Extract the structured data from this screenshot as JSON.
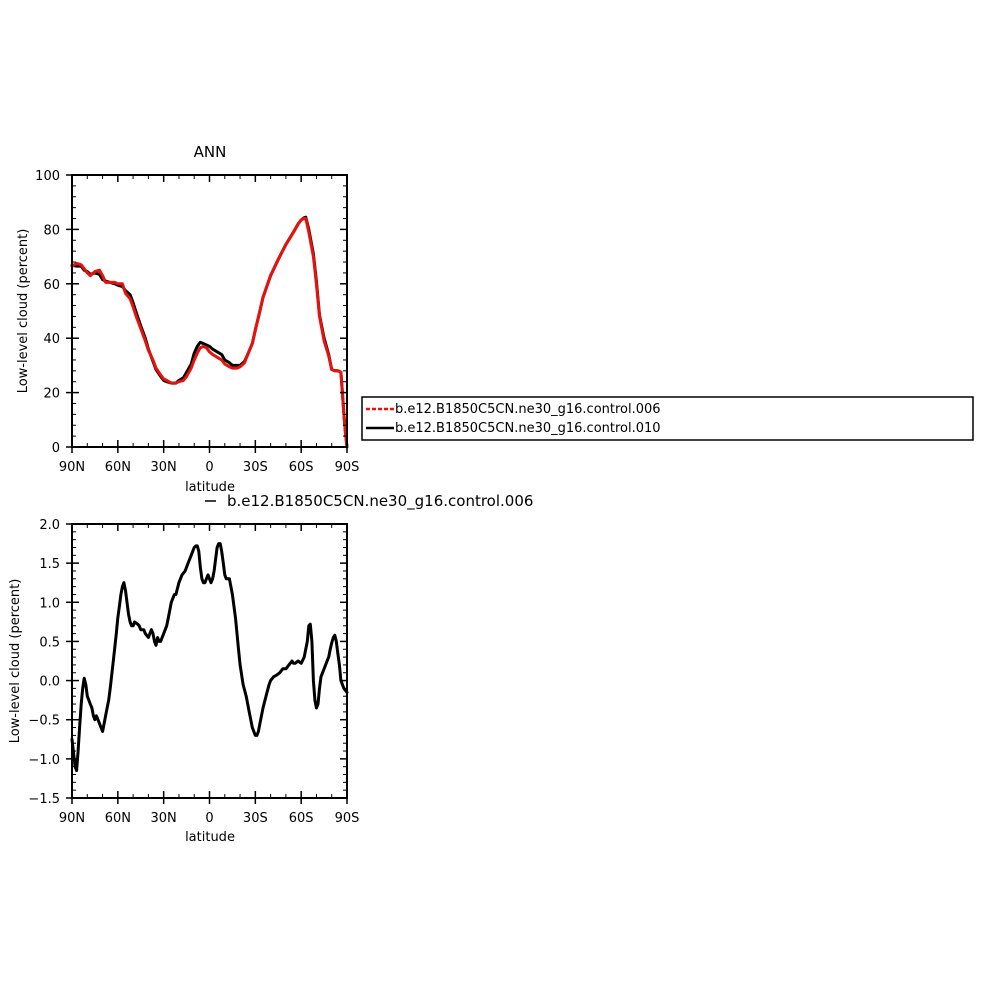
{
  "chart_data": [
    {
      "type": "line",
      "title": "ANN",
      "xlabel": "latitude",
      "ylabel": "Low-level cloud (percent)",
      "xlim": [
        90,
        -90
      ],
      "ylim": [
        0,
        100
      ],
      "xticks": [
        {
          "value": 90,
          "label": "90N"
        },
        {
          "value": 60,
          "label": "60N"
        },
        {
          "value": 30,
          "label": "30N"
        },
        {
          "value": 0,
          "label": "0"
        },
        {
          "value": -30,
          "label": "30S"
        },
        {
          "value": -60,
          "label": "60S"
        },
        {
          "value": -90,
          "label": "90S"
        }
      ],
      "yticks": [
        {
          "value": 0,
          "label": "0"
        },
        {
          "value": 20,
          "label": "20"
        },
        {
          "value": 40,
          "label": "40"
        },
        {
          "value": 60,
          "label": "60"
        },
        {
          "value": 80,
          "label": "80"
        },
        {
          "value": 100,
          "label": "100"
        }
      ],
      "legend": {
        "placement": "right",
        "entries": [
          {
            "label": "b.e12.B1850C5CN.ne30_g16.control.006",
            "color": "#e8120c",
            "dashed": true
          },
          {
            "label": "b.e12.B1850C5CN.ne30_g16.control.010",
            "color": "#000000",
            "dashed": false
          }
        ]
      },
      "series": [
        {
          "name": "b.e12.B1850C5CN.ne30_g16.control.006",
          "color": "#e8120c",
          "x": [
            90,
            87,
            84,
            82,
            80,
            78,
            75,
            72,
            70,
            68,
            65,
            62,
            60,
            57,
            55,
            52,
            50,
            48,
            45,
            42,
            40,
            37,
            35,
            32,
            30,
            28,
            25,
            22,
            20,
            17,
            15,
            12,
            10,
            8,
            6,
            4,
            2,
            0,
            -2,
            -5,
            -8,
            -10,
            -13,
            -15,
            -18,
            -20,
            -23,
            -25,
            -28,
            -30,
            -33,
            -35,
            -40,
            -45,
            -50,
            -55,
            -58,
            -60,
            -62,
            -63,
            -65,
            -68,
            -70,
            -72,
            -75,
            -78,
            -80,
            -82,
            -84,
            -86,
            -87,
            -88,
            -89,
            -90
          ],
          "y": [
            66.5,
            67.5,
            67,
            65.5,
            64,
            63,
            64.5,
            65,
            63,
            60.5,
            60.5,
            60.5,
            60,
            60,
            56.5,
            54.5,
            51.5,
            48,
            43.5,
            39,
            35.5,
            32,
            29,
            26.5,
            25,
            24.5,
            23.5,
            23.5,
            24,
            24.5,
            26,
            29,
            32,
            34.5,
            36.5,
            37,
            36.5,
            35,
            34,
            33,
            32,
            30.5,
            29.5,
            29,
            29,
            29.5,
            31,
            34,
            38,
            43,
            50,
            55,
            63,
            69,
            74.5,
            79,
            82,
            83.5,
            84,
            84,
            79,
            70,
            60,
            48,
            39,
            33.5,
            28.5,
            28,
            28,
            27.5,
            20,
            12,
            5,
            0
          ]
        },
        {
          "name": "b.e12.B1850C5CN.ne30_g16.control.010",
          "color": "#000000",
          "x": [
            90,
            87,
            84,
            82,
            80,
            78,
            75,
            72,
            70,
            68,
            65,
            62,
            60,
            57,
            55,
            52,
            50,
            48,
            45,
            42,
            40,
            37,
            35,
            32,
            30,
            28,
            25,
            22,
            20,
            17,
            15,
            12,
            10,
            8,
            6,
            4,
            2,
            0,
            -2,
            -5,
            -8,
            -10,
            -13,
            -15,
            -18,
            -20,
            -23,
            -25,
            -28,
            -30,
            -33,
            -35,
            -40,
            -45,
            -50,
            -55,
            -58,
            -60,
            -62,
            -63,
            -65,
            -68,
            -70,
            -72,
            -75,
            -78,
            -80,
            -82,
            -84,
            -86,
            -87,
            -88,
            -89,
            -90
          ],
          "y": [
            66.8,
            66.5,
            66.5,
            65,
            64.5,
            63.5,
            64,
            63.5,
            61.5,
            61,
            60.5,
            60,
            59.5,
            59,
            57.5,
            56,
            53,
            49.5,
            44.5,
            40,
            36,
            31.5,
            28.5,
            26,
            24.5,
            24,
            23.5,
            23.5,
            24.5,
            25.5,
            27.5,
            30.5,
            34.5,
            37,
            38.5,
            38,
            37.5,
            37,
            36,
            35,
            34,
            32,
            31,
            30,
            30,
            30,
            31.5,
            34,
            38,
            43,
            50,
            55,
            63,
            69,
            74.5,
            79,
            82,
            83.5,
            84.3,
            84.5,
            80,
            71,
            61,
            48.5,
            40,
            34,
            28.5,
            28,
            28,
            27.5,
            20,
            12,
            5,
            0
          ]
        }
      ]
    },
    {
      "type": "line",
      "title": "b.e12.B1850C5CN.ne30_g16.control.006",
      "xlabel": "latitude",
      "ylabel": "Low-level cloud (percent)",
      "xlim": [
        90,
        -90
      ],
      "ylim": [
        -1.5,
        2.0
      ],
      "xticks": [
        {
          "value": 90,
          "label": "90N"
        },
        {
          "value": 60,
          "label": "60N"
        },
        {
          "value": 30,
          "label": "30N"
        },
        {
          "value": 0,
          "label": "0"
        },
        {
          "value": -30,
          "label": "30S"
        },
        {
          "value": -60,
          "label": "60S"
        },
        {
          "value": -90,
          "label": "90S"
        }
      ],
      "yticks": [
        {
          "value": -1.5,
          "label": "−1.5"
        },
        {
          "value": -1.0,
          "label": "−1.0"
        },
        {
          "value": -0.5,
          "label": "−0.5"
        },
        {
          "value": 0.0,
          "label": "0.0"
        },
        {
          "value": 0.5,
          "label": "0.5"
        },
        {
          "value": 1.0,
          "label": "1.0"
        },
        {
          "value": 1.5,
          "label": "1.5"
        },
        {
          "value": 2.0,
          "label": "2.0"
        }
      ],
      "series": [
        {
          "color": "#000000",
          "x": [
            90,
            88,
            87,
            86,
            85,
            84,
            83,
            82,
            81,
            80,
            79,
            78,
            77,
            76,
            75,
            74,
            73,
            72,
            71,
            70,
            69,
            68,
            67,
            66,
            65,
            63,
            61,
            60,
            59,
            58,
            57,
            56,
            55,
            54,
            53,
            52,
            51,
            50,
            49,
            47,
            46,
            45,
            43,
            42,
            40,
            39,
            38,
            37,
            36,
            35,
            34,
            33,
            32,
            30,
            28,
            27,
            26,
            25,
            24,
            23,
            22,
            20,
            18,
            16,
            14,
            12,
            10,
            9,
            8,
            7,
            6,
            5,
            4,
            3,
            2,
            1,
            0,
            -1,
            -2,
            -3,
            -4,
            -5,
            -6,
            -7,
            -8,
            -9,
            -10,
            -11,
            -12,
            -13,
            -15,
            -17,
            -19,
            -20,
            -22,
            -24,
            -26,
            -28,
            -30,
            -31,
            -32,
            -33,
            -35,
            -37,
            -39,
            -40,
            -42,
            -44,
            -46,
            -48,
            -50,
            -52,
            -54,
            -55,
            -56,
            -58,
            -60,
            -62,
            -64,
            -65,
            -66,
            -67,
            -68,
            -69,
            -70,
            -71,
            -72,
            -73,
            -75,
            -77,
            -78,
            -79,
            -80,
            -81,
            -82,
            -83,
            -84,
            -85,
            -86,
            -88,
            -90
          ],
          "y": [
            -0.75,
            -1.1,
            -1.15,
            -0.9,
            -0.6,
            -0.3,
            -0.1,
            0.03,
            -0.05,
            -0.2,
            -0.25,
            -0.3,
            -0.35,
            -0.45,
            -0.5,
            -0.45,
            -0.5,
            -0.55,
            -0.6,
            -0.65,
            -0.55,
            -0.45,
            -0.35,
            -0.25,
            -0.1,
            0.25,
            0.6,
            0.8,
            0.95,
            1.1,
            1.2,
            1.25,
            1.15,
            1.0,
            0.85,
            0.75,
            0.7,
            0.7,
            0.75,
            0.72,
            0.7,
            0.65,
            0.65,
            0.6,
            0.55,
            0.6,
            0.65,
            0.6,
            0.5,
            0.45,
            0.55,
            0.5,
            0.5,
            0.6,
            0.7,
            0.8,
            0.9,
            1.0,
            1.05,
            1.1,
            1.1,
            1.25,
            1.35,
            1.4,
            1.5,
            1.6,
            1.7,
            1.72,
            1.72,
            1.65,
            1.45,
            1.3,
            1.25,
            1.25,
            1.3,
            1.35,
            1.3,
            1.25,
            1.3,
            1.4,
            1.55,
            1.7,
            1.75,
            1.75,
            1.65,
            1.5,
            1.35,
            1.3,
            1.3,
            1.3,
            1.1,
            0.8,
            0.4,
            0.2,
            -0.05,
            -0.2,
            -0.4,
            -0.6,
            -0.7,
            -0.7,
            -0.65,
            -0.55,
            -0.35,
            -0.2,
            -0.05,
            0.0,
            0.05,
            0.07,
            0.1,
            0.15,
            0.15,
            0.2,
            0.25,
            0.22,
            0.22,
            0.25,
            0.22,
            0.3,
            0.5,
            0.7,
            0.72,
            0.5,
            0.0,
            -0.25,
            -0.35,
            -0.3,
            -0.1,
            0.05,
            0.15,
            0.25,
            0.3,
            0.4,
            0.48,
            0.55,
            0.58,
            0.5,
            0.35,
            0.2,
            0.0,
            -0.1,
            -0.15
          ]
        }
      ]
    }
  ]
}
